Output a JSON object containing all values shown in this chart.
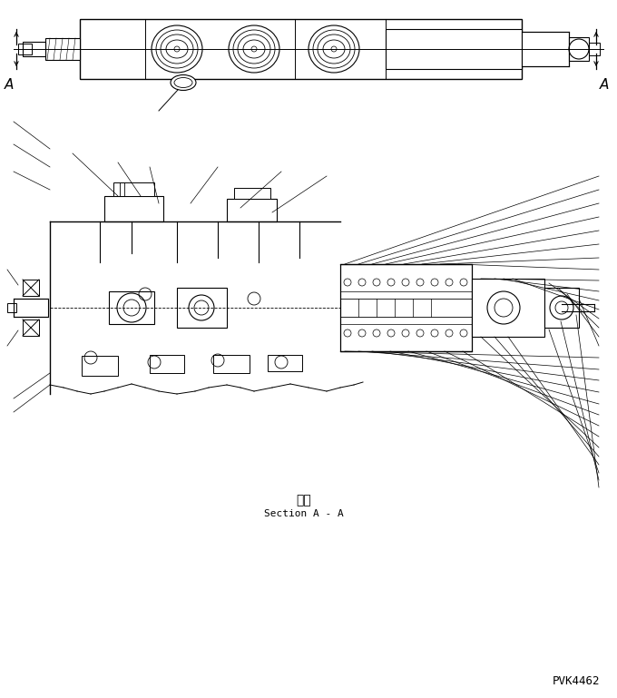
{
  "bg_color": "#ffffff",
  "line_color": "#000000",
  "fig_width": 6.8,
  "fig_height": 7.69,
  "dpi": 100,
  "label_A_left": "A",
  "label_A_right": "A",
  "section_label_jp": "断面",
  "section_label_en": "Section A - A",
  "part_number": "PVK4462"
}
